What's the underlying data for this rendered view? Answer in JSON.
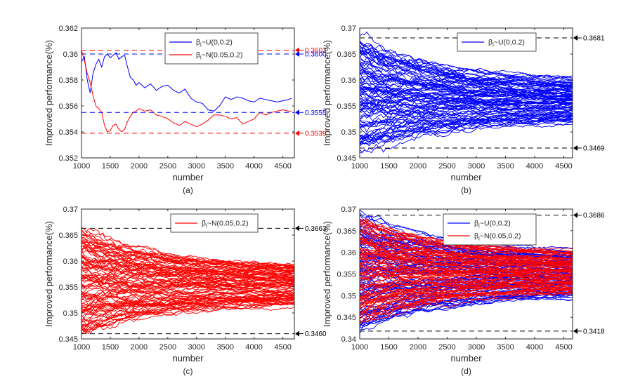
{
  "colors": {
    "u": "#0000ff",
    "n": "#ff0000",
    "ref": "#000000"
  },
  "chart_data": [
    {
      "type": "line",
      "panel": "(a)",
      "caption": "(a)",
      "xlabel": "number",
      "ylabel": "Improved performance(%)",
      "xlim": [
        1000,
        4700
      ],
      "ylim": [
        0.352,
        0.362
      ],
      "xticks": [
        "1000",
        "1500",
        "2000",
        "2500",
        "3000",
        "3500",
        "4000",
        "4500"
      ],
      "yticks": [
        "0.352",
        "0.354",
        "0.356",
        "0.358",
        "0.36",
        "0.362"
      ],
      "legend": [
        "βi~U(0,0.2)",
        "βi~N(0.05,0.2)"
      ],
      "legend_position": "top-right",
      "series": [
        {
          "name": "βi~U(0,0.2)",
          "color": "u",
          "x": [
            1000,
            1050,
            1100,
            1150,
            1200,
            1250,
            1300,
            1350,
            1400,
            1450,
            1500,
            1550,
            1600,
            1650,
            1700,
            1750,
            1800,
            1850,
            1900,
            1950,
            2000,
            2100,
            2200,
            2300,
            2400,
            2500,
            2600,
            2700,
            2800,
            2900,
            3000,
            3100,
            3200,
            3300,
            3400,
            3500,
            3600,
            3700,
            3800,
            3900,
            4000,
            4100,
            4200,
            4300,
            4400,
            4500,
            4600,
            4650
          ],
          "y": [
            0.3594,
            0.3598,
            0.358,
            0.357,
            0.3585,
            0.3592,
            0.3596,
            0.359,
            0.3598,
            0.36,
            0.3597,
            0.3599,
            0.3601,
            0.3596,
            0.3598,
            0.3599,
            0.359,
            0.3582,
            0.358,
            0.3576,
            0.3578,
            0.3574,
            0.3577,
            0.3572,
            0.3575,
            0.3576,
            0.3572,
            0.357,
            0.3573,
            0.3566,
            0.3563,
            0.3562,
            0.3557,
            0.3556,
            0.356,
            0.3567,
            0.3565,
            0.3567,
            0.3566,
            0.3564,
            0.3563,
            0.3566,
            0.3565,
            0.3564,
            0.3563,
            0.3564,
            0.3565,
            0.3566
          ]
        },
        {
          "name": "βi~N(0.05,0.2)",
          "color": "n",
          "x": [
            1000,
            1050,
            1100,
            1150,
            1200,
            1250,
            1300,
            1350,
            1400,
            1450,
            1500,
            1550,
            1600,
            1650,
            1700,
            1750,
            1800,
            1850,
            1900,
            1950,
            2000,
            2100,
            2200,
            2300,
            2400,
            2500,
            2600,
            2700,
            2800,
            2900,
            3000,
            3100,
            3200,
            3300,
            3400,
            3500,
            3600,
            3700,
            3800,
            3900,
            4000,
            4100,
            4200,
            4300,
            4400,
            4500,
            4600,
            4650
          ],
          "y": [
            0.3603,
            0.3595,
            0.3585,
            0.3578,
            0.3568,
            0.356,
            0.3558,
            0.3555,
            0.3545,
            0.354,
            0.3541,
            0.3545,
            0.3546,
            0.3542,
            0.354,
            0.3542,
            0.3548,
            0.3552,
            0.3555,
            0.3556,
            0.3558,
            0.3556,
            0.3557,
            0.3553,
            0.3552,
            0.355,
            0.3547,
            0.3545,
            0.3548,
            0.3546,
            0.3544,
            0.3546,
            0.3549,
            0.3553,
            0.3553,
            0.3552,
            0.355,
            0.3551,
            0.3546,
            0.3548,
            0.355,
            0.3555,
            0.3553,
            0.3555,
            0.3556,
            0.3557,
            0.3556,
            0.3556
          ]
        }
      ],
      "reference_lines": [
        {
          "y": 0.3603,
          "label": "0.3603",
          "color": "n"
        },
        {
          "y": 0.36,
          "label": "0.3600",
          "color": "u"
        },
        {
          "y": 0.3555,
          "label": "0.3555",
          "color": "u"
        },
        {
          "y": 0.3539,
          "label": "0.3539",
          "color": "n"
        }
      ]
    },
    {
      "type": "line",
      "panel": "(b)",
      "caption": "(b)",
      "xlabel": "number",
      "ylabel": "Improved performance(%)",
      "xlim": [
        1000,
        4650
      ],
      "ylim": [
        0.345,
        0.37
      ],
      "xticks": [
        "1000",
        "1500",
        "2000",
        "2500",
        "3000",
        "3500",
        "4000",
        "4500"
      ],
      "yticks": [
        "0.345",
        "0.35",
        "0.355",
        "0.36",
        "0.365",
        "0.37"
      ],
      "legend": [
        "βi~U(0,0.2)"
      ],
      "legend_position": "top-right",
      "ensemble": [
        {
          "color": "u",
          "count": 100,
          "start_range": [
            0.3469,
            0.3681
          ],
          "end_range": [
            0.3505,
            0.36
          ],
          "center": 0.3553
        }
      ],
      "reference_lines": [
        {
          "y": 0.3681,
          "label": "0.3681",
          "color": "ref"
        },
        {
          "y": 0.3469,
          "label": "0.3469",
          "color": "ref"
        }
      ]
    },
    {
      "type": "line",
      "panel": "(c)",
      "caption": "(c)",
      "xlabel": "number",
      "ylabel": "Improved performance(%)",
      "xlim": [
        1000,
        4700
      ],
      "ylim": [
        0.345,
        0.37
      ],
      "xticks": [
        "1000",
        "1500",
        "2000",
        "2500",
        "3000",
        "3500",
        "4000",
        "4500"
      ],
      "yticks": [
        "0.345",
        "0.35",
        "0.355",
        "0.36",
        "0.365",
        "0.37"
      ],
      "legend": [
        "βi~N(0.05,0.2)"
      ],
      "legend_position": "top-right",
      "ensemble": [
        {
          "color": "n",
          "count": 100,
          "start_range": [
            0.346,
            0.3663
          ],
          "end_range": [
            0.3518,
            0.3585
          ],
          "center": 0.3553
        }
      ],
      "reference_lines": [
        {
          "y": 0.3663,
          "label": "0.3663",
          "color": "ref"
        },
        {
          "y": 0.346,
          "label": "0.3460",
          "color": "ref"
        }
      ]
    },
    {
      "type": "line",
      "panel": "(d)",
      "caption": "(d)",
      "xlabel": "number",
      "ylabel": "Improved performance(%)",
      "xlim": [
        1000,
        4650
      ],
      "ylim": [
        0.34,
        0.37
      ],
      "xticks": [
        "1000",
        "1500",
        "2000",
        "2500",
        "3000",
        "3500",
        "4000",
        "4500"
      ],
      "yticks": [
        "0.34",
        "0.345",
        "0.35",
        "0.355",
        "0.36",
        "0.365",
        "0.37"
      ],
      "legend": [
        "βi~U(0,0.2)",
        "βi~N(0.05,0.2)"
      ],
      "legend_position": "top-right",
      "ensemble": [
        {
          "color": "u",
          "count": 100,
          "start_range": [
            0.3418,
            0.3686
          ],
          "end_range": [
            0.3495,
            0.362
          ],
          "center": 0.3553
        },
        {
          "color": "n",
          "count": 100,
          "start_range": [
            0.344,
            0.368
          ],
          "end_range": [
            0.35,
            0.361
          ],
          "center": 0.3553
        }
      ],
      "reference_lines": [
        {
          "y": 0.3686,
          "label": "0.3686",
          "color": "ref"
        },
        {
          "y": 0.3418,
          "label": "0.3418",
          "color": "ref"
        }
      ]
    }
  ]
}
